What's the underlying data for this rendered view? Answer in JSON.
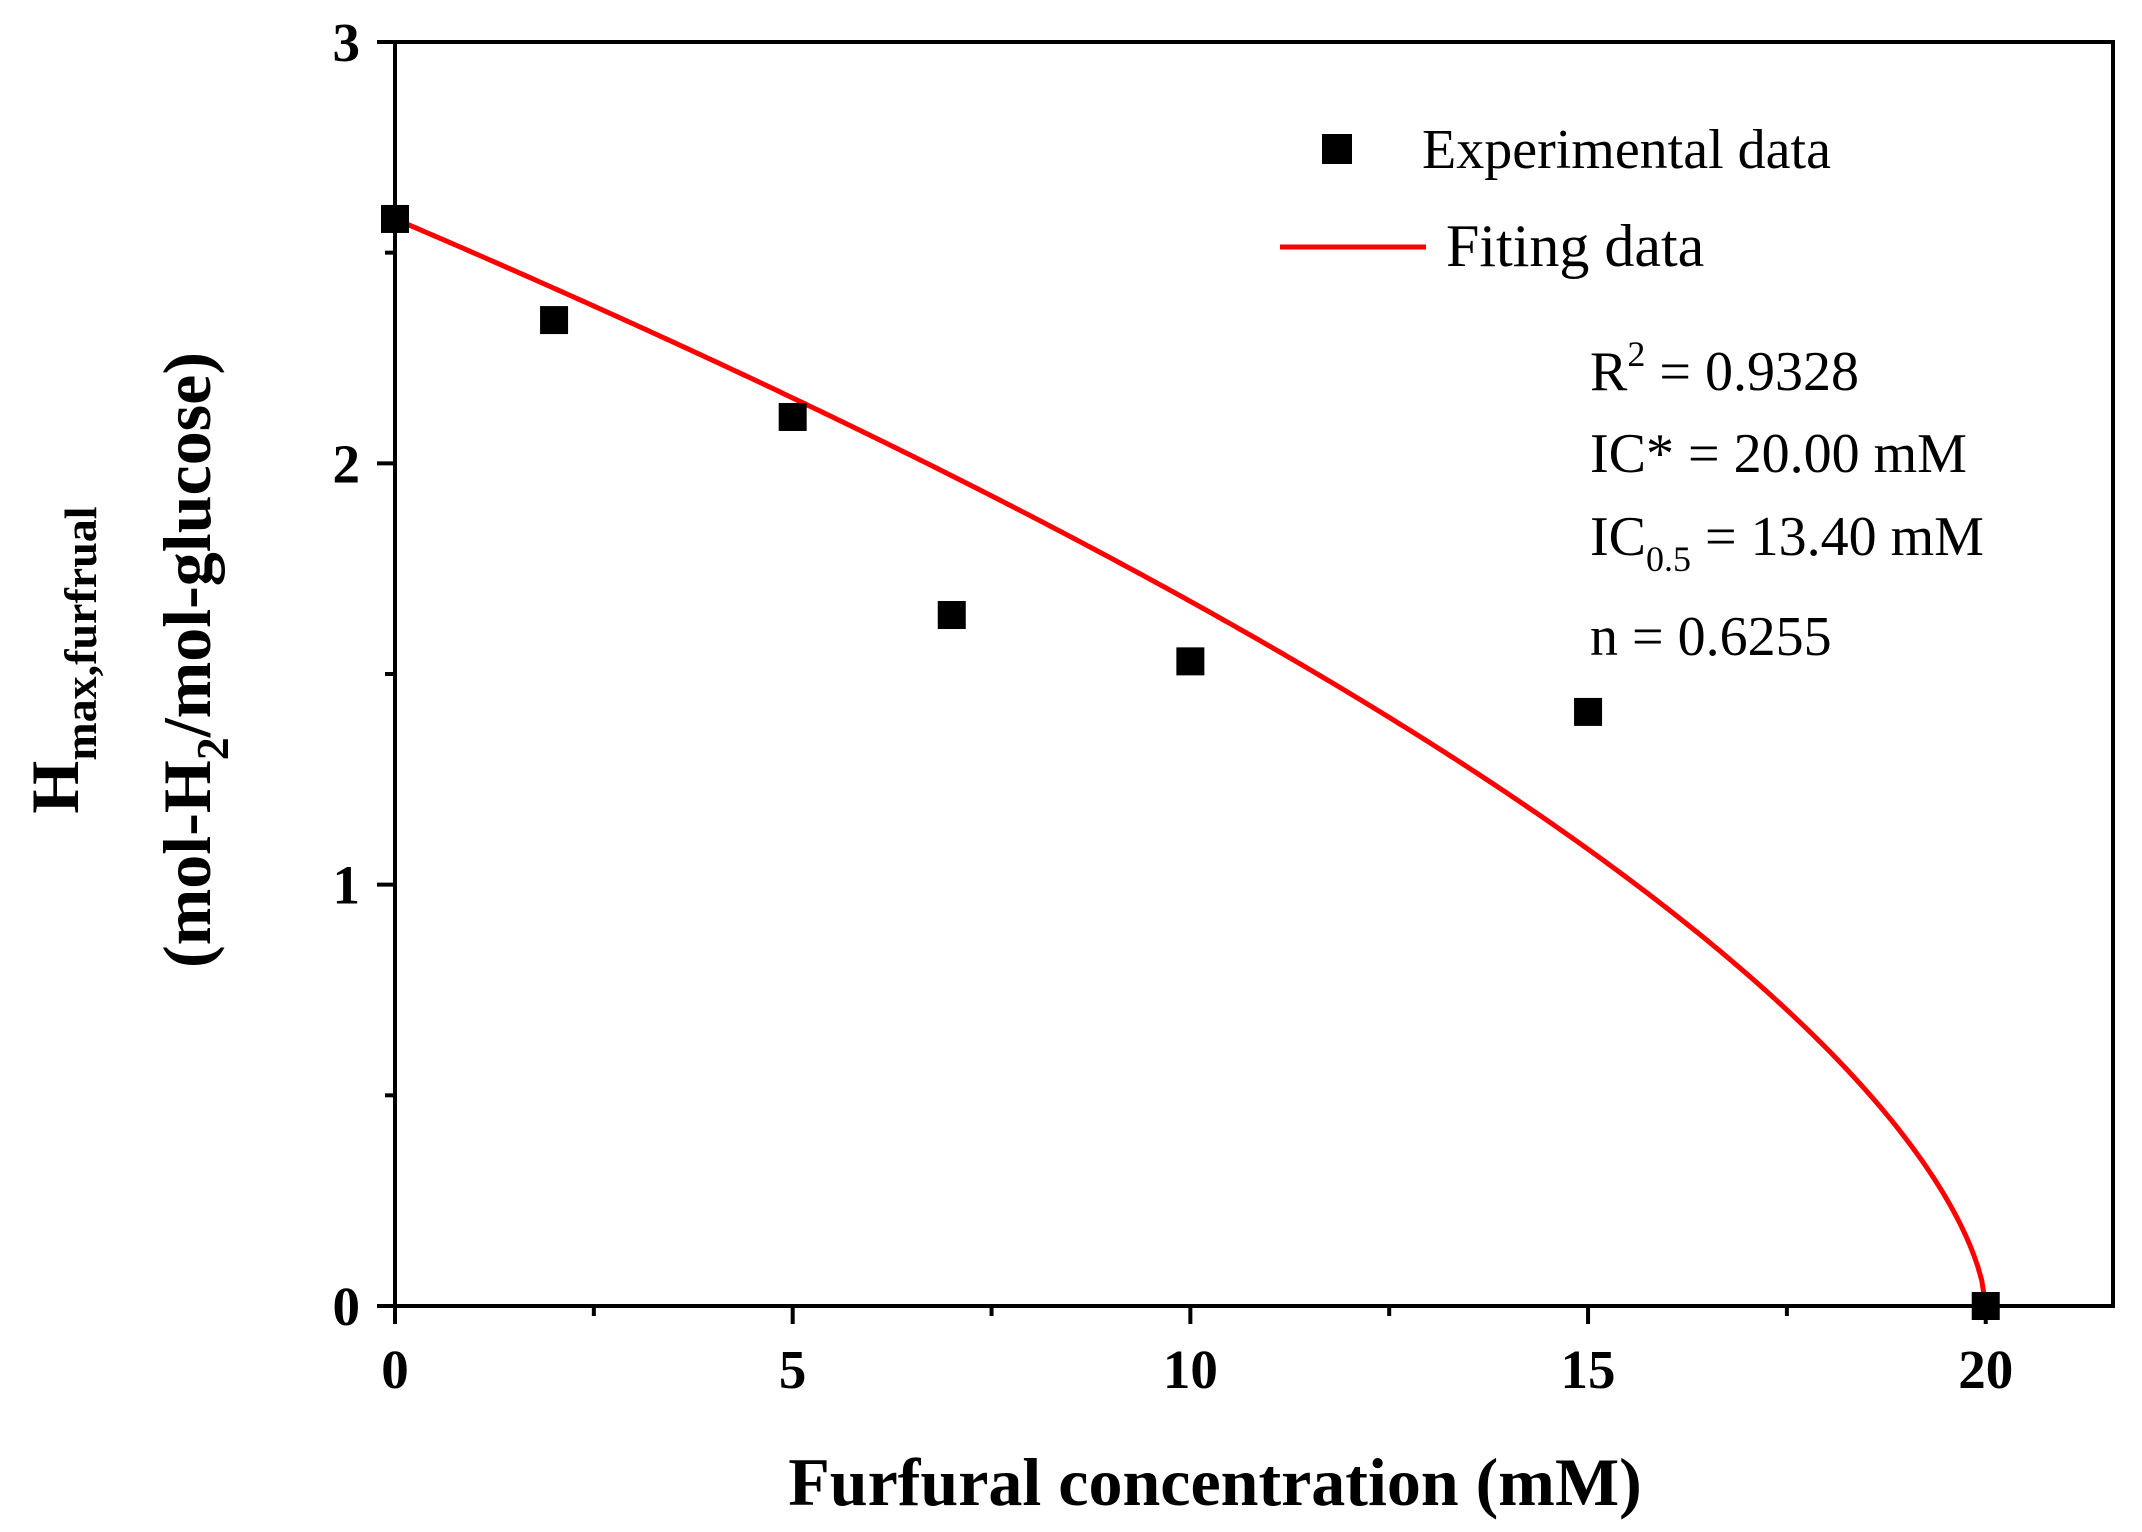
{
  "chart_data": {
    "type": "scatter",
    "title": "",
    "xlabel": "Furfural concentration (mM)",
    "ylabel": {
      "line1_main": "H",
      "line1_sub": "max,furfrual",
      "line2_a": "(mol-H",
      "line2_sub": "2",
      "line2_b": "/mol-glucose)"
    },
    "xlim": [
      0,
      21.6
    ],
    "ylim": [
      0,
      3
    ],
    "x_ticks": [
      0,
      5,
      10,
      15,
      20
    ],
    "x_tick_labels": [
      "0",
      "5",
      "10",
      "15",
      "20"
    ],
    "x_minor_ticks": [
      2.5,
      7.5,
      12.5,
      17.5
    ],
    "y_ticks": [
      0,
      1,
      2,
      3
    ],
    "y_tick_labels": [
      "0",
      "1",
      "2",
      "3"
    ],
    "y_minor_ticks": [
      0.5,
      1.5,
      2.5
    ],
    "series": [
      {
        "name": "Experimental data",
        "kind": "scatter",
        "marker": "square",
        "color": "#000000",
        "x": [
          0,
          2,
          5,
          7,
          10,
          15,
          20
        ],
        "y": [
          2.58,
          2.34,
          2.11,
          1.64,
          1.53,
          1.41,
          0.0
        ]
      },
      {
        "name": "Fiting data",
        "kind": "line",
        "color": "#ff0000",
        "model": {
          "form": "Hmax * (1 - C / IC*)^n",
          "Hmax": 2.58,
          "IC_star": 20.0,
          "n": 0.6255
        }
      }
    ],
    "legend": {
      "position": "top-right",
      "entries": [
        "Experimental data",
        "Fiting data"
      ]
    },
    "annotations": {
      "r2_prefix": "R",
      "r2_sup": "2",
      "r2_value": " = 0.9328",
      "ic_star": "IC* = 20.00 mM",
      "ic05_prefix": "IC",
      "ic05_sub": "0.5",
      "ic05_value": " = 13.40 mM",
      "n_text": "n = 0.6255"
    }
  }
}
